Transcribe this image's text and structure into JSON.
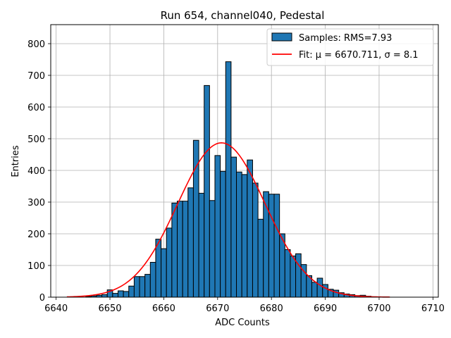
{
  "chart_data": {
    "type": "bar",
    "title": "Run 654, channel040, Pedestal",
    "xlabel": "ADC Counts",
    "ylabel": "Entries",
    "xlim": [
      6639,
      6711
    ],
    "ylim": [
      0,
      860
    ],
    "xticks": [
      6640,
      6650,
      6660,
      6670,
      6680,
      6690,
      6700,
      6710
    ],
    "yticks": [
      0,
      100,
      200,
      300,
      400,
      500,
      600,
      700,
      800
    ],
    "grid": true,
    "legend_position": "top-right",
    "bin_width": 1,
    "series": [
      {
        "name": "Samples: RMS=7.93",
        "kind": "histogram",
        "color": "#1f77b4",
        "bins": [
          {
            "x": 6646,
            "y": 2
          },
          {
            "x": 6647,
            "y": 4
          },
          {
            "x": 6648,
            "y": 6
          },
          {
            "x": 6649,
            "y": 8
          },
          {
            "x": 6650,
            "y": 23
          },
          {
            "x": 6651,
            "y": 12
          },
          {
            "x": 6652,
            "y": 20
          },
          {
            "x": 6653,
            "y": 18
          },
          {
            "x": 6654,
            "y": 35
          },
          {
            "x": 6655,
            "y": 65
          },
          {
            "x": 6656,
            "y": 65
          },
          {
            "x": 6657,
            "y": 72
          },
          {
            "x": 6658,
            "y": 110
          },
          {
            "x": 6659,
            "y": 183
          },
          {
            "x": 6660,
            "y": 153
          },
          {
            "x": 6661,
            "y": 218
          },
          {
            "x": 6662,
            "y": 297
          },
          {
            "x": 6663,
            "y": 303
          },
          {
            "x": 6664,
            "y": 303
          },
          {
            "x": 6665,
            "y": 345
          },
          {
            "x": 6666,
            "y": 495
          },
          {
            "x": 6667,
            "y": 328
          },
          {
            "x": 6668,
            "y": 668
          },
          {
            "x": 6669,
            "y": 305
          },
          {
            "x": 6670,
            "y": 447
          },
          {
            "x": 6671,
            "y": 397
          },
          {
            "x": 6672,
            "y": 743
          },
          {
            "x": 6673,
            "y": 442
          },
          {
            "x": 6674,
            "y": 395
          },
          {
            "x": 6675,
            "y": 387
          },
          {
            "x": 6676,
            "y": 433
          },
          {
            "x": 6677,
            "y": 360
          },
          {
            "x": 6678,
            "y": 246
          },
          {
            "x": 6679,
            "y": 333
          },
          {
            "x": 6680,
            "y": 325
          },
          {
            "x": 6681,
            "y": 325
          },
          {
            "x": 6682,
            "y": 200
          },
          {
            "x": 6683,
            "y": 150
          },
          {
            "x": 6684,
            "y": 130
          },
          {
            "x": 6685,
            "y": 137
          },
          {
            "x": 6686,
            "y": 103
          },
          {
            "x": 6687,
            "y": 68
          },
          {
            "x": 6688,
            "y": 47
          },
          {
            "x": 6689,
            "y": 60
          },
          {
            "x": 6690,
            "y": 40
          },
          {
            "x": 6691,
            "y": 25
          },
          {
            "x": 6692,
            "y": 22
          },
          {
            "x": 6693,
            "y": 14
          },
          {
            "x": 6694,
            "y": 10
          },
          {
            "x": 6695,
            "y": 8
          },
          {
            "x": 6696,
            "y": 5
          },
          {
            "x": 6697,
            "y": 6
          },
          {
            "x": 6698,
            "y": 3
          }
        ]
      },
      {
        "name": "Fit: μ = 6670.711, σ = 8.1",
        "kind": "gaussian-fit",
        "color": "#ff0000",
        "mu": 6670.711,
        "sigma": 8.1,
        "amplitude": 487,
        "x_range": [
          6642,
          6702
        ]
      }
    ]
  }
}
